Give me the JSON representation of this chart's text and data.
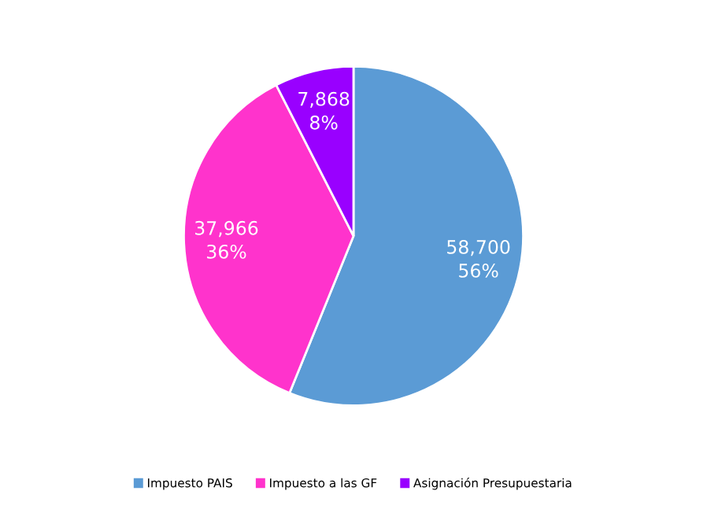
{
  "chart_data": {
    "type": "pie",
    "categories": [
      "Impuesto PAIS",
      "Impuesto a las GF",
      "Asignación Presupuestaria"
    ],
    "values": [
      58700,
      37966,
      7868
    ],
    "colors": [
      "#5b9bd5",
      "#ff33cc",
      "#9900ff"
    ],
    "value_labels": [
      "58,700\n56%",
      "37,966\n36%",
      "7,868\n8%"
    ],
    "legend": "bottom"
  }
}
